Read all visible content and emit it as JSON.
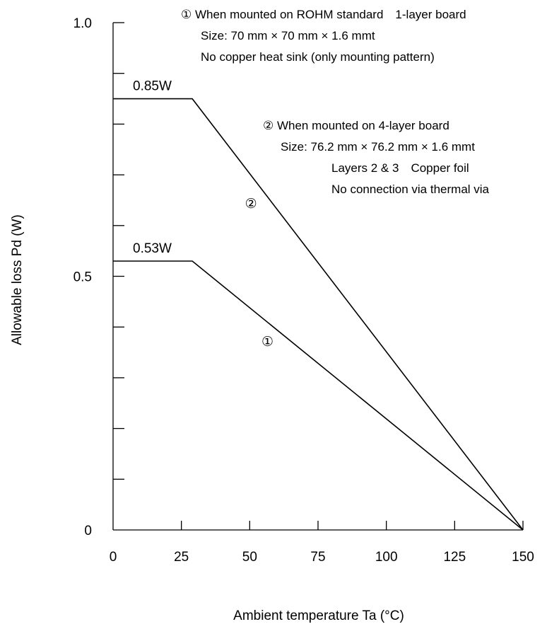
{
  "chart_data": {
    "type": "line",
    "xlabel": "Ambient temperature Ta (°C)",
    "ylabel": "Allowable loss Pd (W)",
    "xlim": [
      0,
      150
    ],
    "ylim": [
      0,
      1.0
    ],
    "x_ticks": [
      0,
      25,
      50,
      75,
      100,
      125,
      150
    ],
    "x_tick_labels": [
      "0",
      "25",
      "50",
      "75",
      "100",
      "125",
      "150"
    ],
    "y_major_ticks": [
      0,
      0.5,
      1.0
    ],
    "y_tick_labels": [
      "0",
      "0.5",
      "1.0"
    ],
    "y_minor_ticks": [
      0.1,
      0.2,
      0.3,
      0.4,
      0.6,
      0.7,
      0.8,
      0.9
    ],
    "grid": false,
    "series": [
      {
        "points": [
          {
            "x": 0,
            "y": 0.53
          },
          {
            "x": 29,
            "y": 0.53
          },
          {
            "x": 150,
            "y": 0
          }
        ],
        "value_label": "0.53W",
        "marker": "①"
      },
      {
        "points": [
          {
            "x": 0,
            "y": 0.85
          },
          {
            "x": 29,
            "y": 0.85
          },
          {
            "x": 150,
            "y": 0
          }
        ],
        "value_label": "0.85W",
        "marker": "②"
      }
    ],
    "notes": [
      {
        "lines": [
          "① When mounted on ROHM standard　1-layer board",
          "Size: 70 mm × 70 mm × 1.6 mmt",
          "No copper heat sink (only mounting pattern)"
        ]
      },
      {
        "lines": [
          "② When mounted on 4-layer board",
          "Size: 76.2 mm × 76.2 mm × 1.6 mmt",
          "Layers 2 & 3　Copper foil",
          "No connection via thermal via"
        ]
      }
    ]
  }
}
